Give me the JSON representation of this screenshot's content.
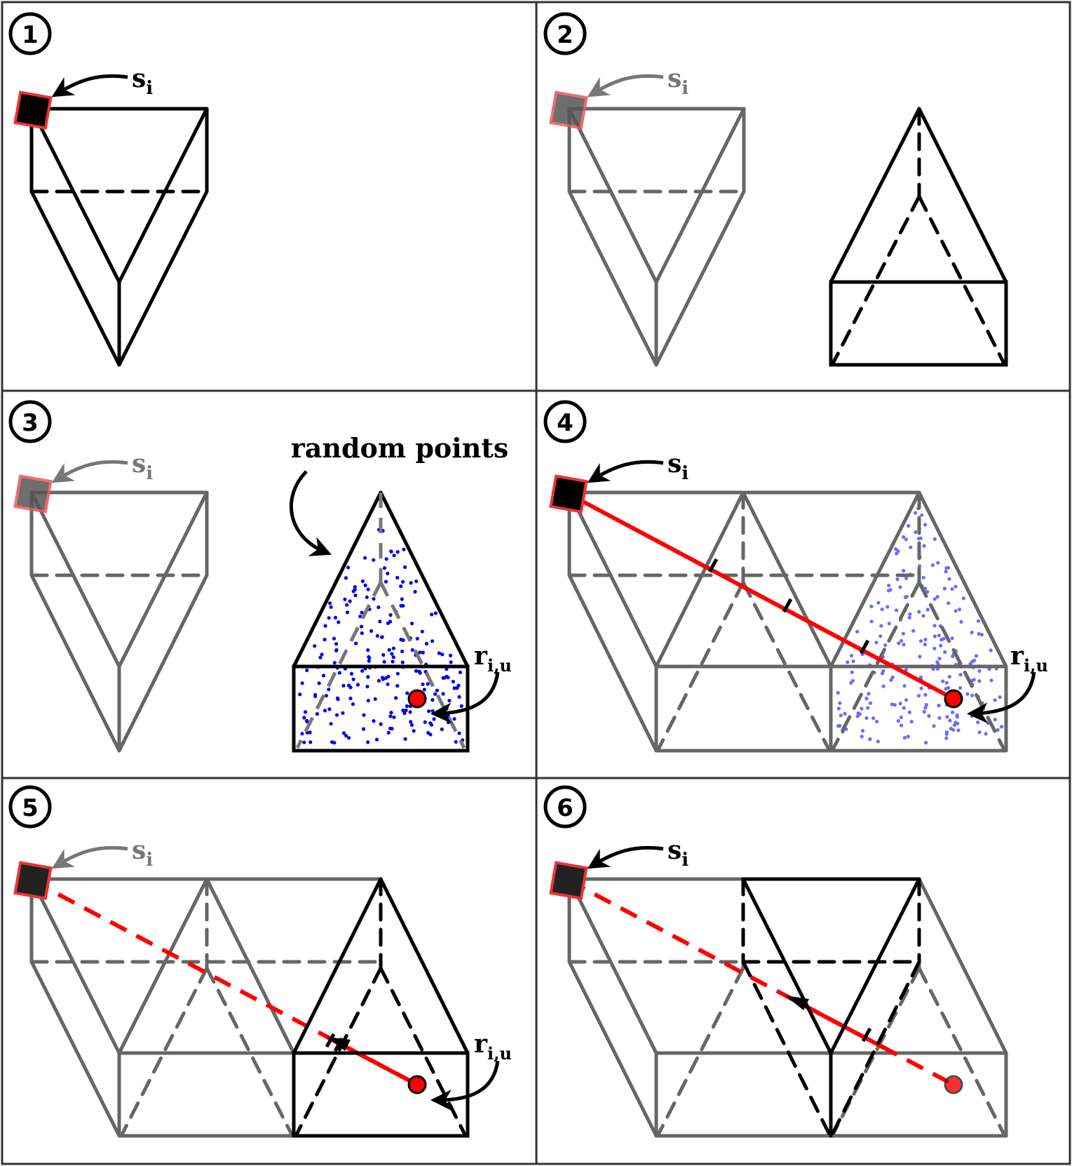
{
  "title": "Six-step illustration of ray tracing from a source through prism/pyramid cells to a random point",
  "labels": {
    "source_sub": "i",
    "source_base": "s",
    "receiver_base": "r",
    "receiver_sub": "i,u",
    "random_points": "random points"
  },
  "panels": [
    {
      "number": "1"
    },
    {
      "number": "2"
    },
    {
      "number": "3"
    },
    {
      "number": "4"
    },
    {
      "number": "5"
    },
    {
      "number": "6"
    }
  ],
  "colors": {
    "stroke": "#000000",
    "faded": "#666666",
    "ray": "#ff0000",
    "points": "#0000ee",
    "points_faded": "#6b6bff",
    "marker_edge": "#e33"
  }
}
